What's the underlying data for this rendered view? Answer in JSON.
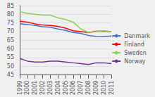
{
  "chart_data": {
    "type": "line",
    "categories": [
      "1999",
      "2000",
      "2001",
      "2002",
      "2003",
      "2004",
      "2005",
      "2006",
      "2007",
      "2008",
      "2009",
      "2010",
      "2011"
    ],
    "series": [
      {
        "name": "Denmark",
        "color": "#4472C4",
        "values": [
          74.5,
          74.2,
          73.5,
          72.8,
          72.5,
          71.5,
          70.7,
          69.5,
          69.0,
          67.8,
          67.3,
          67.2,
          67.5
        ]
      },
      {
        "name": "Finland",
        "color": "#FF0000",
        "values": [
          76.0,
          75.5,
          74.5,
          73.8,
          73.5,
          73.0,
          72.0,
          70.5,
          70.0,
          69.5,
          70.2,
          70.3,
          70.0
        ]
      },
      {
        "name": "Sweden",
        "color": "#92D050",
        "values": [
          81.5,
          80.5,
          80.0,
          79.5,
          79.5,
          78.0,
          77.0,
          75.5,
          71.5,
          69.5,
          70.0,
          70.5,
          70.0
        ]
      },
      {
        "name": "Norway",
        "color": "#7030A0",
        "values": [
          54.5,
          53.0,
          52.5,
          52.5,
          53.0,
          53.0,
          52.5,
          52.0,
          51.5,
          51.0,
          52.0,
          52.0,
          51.5
        ]
      }
    ],
    "ylim": [
      45,
      85
    ],
    "yticks": [
      45,
      50,
      55,
      60,
      65,
      70,
      75,
      80,
      85
    ],
    "grid": true,
    "legend": "right",
    "background_color": "#f0f0f0"
  }
}
